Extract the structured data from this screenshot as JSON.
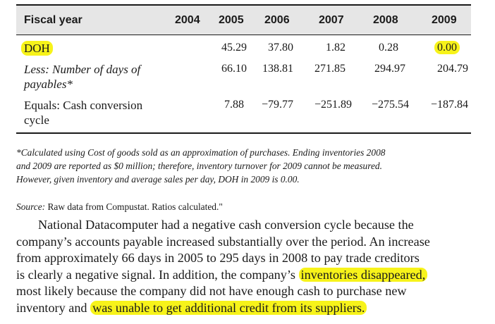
{
  "table": {
    "headers": [
      "Fiscal year",
      "2004",
      "2005",
      "2006",
      "2007",
      "2008",
      "2009"
    ],
    "rows": [
      {
        "label": "DOH",
        "values": [
          "",
          "45.29",
          "37.80",
          "1.82",
          "0.28",
          "0.00"
        ]
      },
      {
        "label": "Less: Number of days of payables*",
        "label_line1": "Less: Number of days of",
        "label_line2": "payables*",
        "values": [
          "",
          "66.10",
          "138.81",
          "271.85",
          "294.97",
          "204.79"
        ]
      },
      {
        "label_line1": "Equals: Cash conversion",
        "label_line2": "cycle",
        "values": [
          "",
          "7.88",
          "−79.77",
          "−251.89",
          "−275.54",
          "−187.84"
        ]
      }
    ]
  },
  "footnote": {
    "line1": "*Calculated using Cost of goods sold as an approximation of purchases. Ending inventories 2008",
    "line2": "and 2009 are reported as $0 million; therefore, inventory turnover for 2009 cannot be measured.",
    "line3": "However, given inventory and average sales per day, DOH in 2009 is 0.00."
  },
  "source": {
    "label": "Source:",
    "text": " Raw data from Compustat. Ratios calculated.\""
  },
  "paragraph": {
    "line1": "National Datacomputer had a negative cash conversion cycle because the",
    "line2": "company’s accounts payable increased substantially over the period. An increase",
    "line3": "from approximately 66 days in 2005 to 295 days in 2008 to pay trade creditors",
    "line4a": "is clearly a negative signal. In addition, the company’s ",
    "line4b": "inventories disappeared,",
    "line5": "most likely because the company did not have enough cash to purchase new",
    "line6a": "inventory and ",
    "line6b": "was unable to get additional credit from its suppliers."
  },
  "highlight_color": "#f7f31a"
}
